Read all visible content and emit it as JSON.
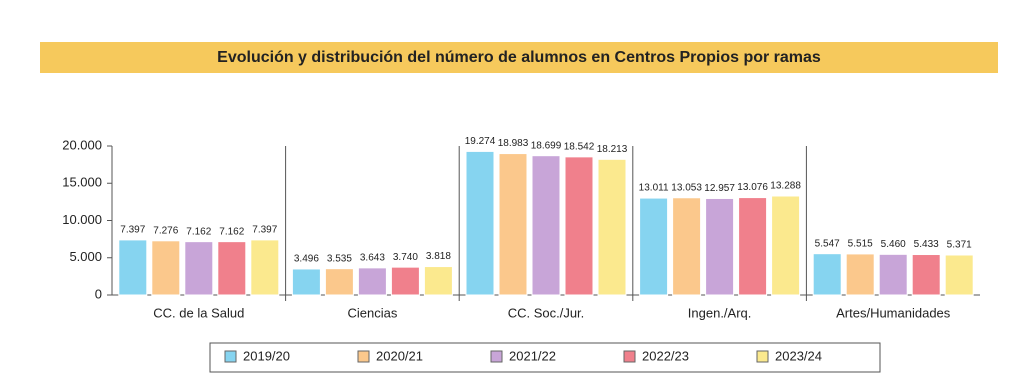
{
  "chart_data": {
    "type": "bar",
    "title": "Evolución y distribución del número de alumnos en Centros Propios por ramas",
    "categories": [
      "CC. de la Salud",
      "Ciencias",
      "CC. Soc./Jur.",
      "Ingen./Arq.",
      "Artes/Humanidades"
    ],
    "series": [
      {
        "name": "2019/20",
        "color": "#86d4f0",
        "values": [
          7397,
          3496,
          19274,
          13011,
          5547
        ],
        "value_labels": [
          "7.397",
          "3.496",
          "19.274",
          "13.011",
          "5.547"
        ]
      },
      {
        "name": "2020/21",
        "color": "#fbc88c",
        "values": [
          7276,
          3535,
          18983,
          13053,
          5515
        ],
        "value_labels": [
          "7.276",
          "3.535",
          "18.983",
          "13.053",
          "5.515"
        ]
      },
      {
        "name": "2021/22",
        "color": "#c8a5d8",
        "values": [
          7162,
          3643,
          18699,
          12957,
          5460
        ],
        "value_labels": [
          "7.162",
          "3.643",
          "18.699",
          "12.957",
          "5.460"
        ]
      },
      {
        "name": "2022/23",
        "color": "#f0808c",
        "values": [
          7162,
          3740,
          18542,
          13076,
          5433
        ],
        "value_labels": [
          "7.162",
          "3.740",
          "18.542",
          "13.076",
          "5.433"
        ]
      },
      {
        "name": "2023/24",
        "color": "#fbe98e",
        "values": [
          7397,
          3818,
          18213,
          13288,
          5371
        ],
        "value_labels": [
          "7.397",
          "3.818",
          "18.213",
          "13.288",
          "5.371"
        ]
      }
    ],
    "ylim": [
      0,
      20000
    ],
    "yticks": [
      0,
      {
        "value": 5000,
        "label": "5.000"
      },
      {
        "value": 10000,
        "label": "10.000"
      },
      {
        "value": 15000,
        "label": "15.000"
      },
      {
        "value": 20000,
        "label": "20.000"
      }
    ]
  }
}
